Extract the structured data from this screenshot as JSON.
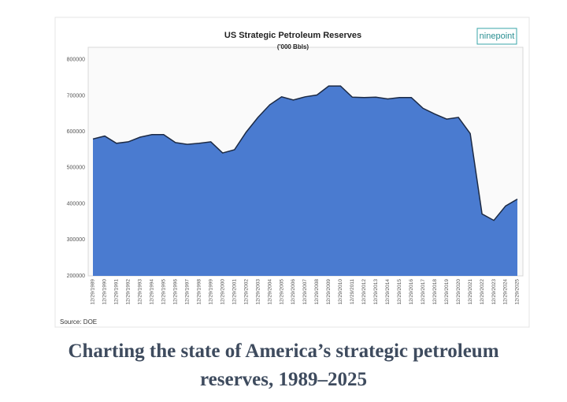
{
  "chart_data": {
    "type": "area",
    "title": "US Strategic Petroleum Reserves",
    "subtitle": "('000 Bbls)",
    "logo": "ninepoint",
    "source": "Source: DOE",
    "caption": "Charting the state of America’s strategic petroleum reserves, 1989–2025",
    "categories": [
      "12/29/1989",
      "12/29/1990",
      "12/29/1991",
      "12/29/1992",
      "12/29/1993",
      "12/29/1994",
      "12/29/1995",
      "12/29/1996",
      "12/29/1997",
      "12/29/1998",
      "12/29/1999",
      "12/29/2000",
      "12/29/2001",
      "12/29/2002",
      "12/29/2003",
      "12/29/2004",
      "12/29/2005",
      "12/29/2006",
      "12/29/2007",
      "12/29/2008",
      "12/29/2009",
      "12/29/2010",
      "12/29/2011",
      "12/29/2012",
      "12/29/2013",
      "12/29/2014",
      "12/29/2015",
      "12/29/2016",
      "12/29/2017",
      "12/29/2018",
      "12/29/2019",
      "12/29/2020",
      "12/29/2021",
      "12/29/2022",
      "12/29/2023",
      "12/29/2024",
      "12/29/2025"
    ],
    "values": [
      580000,
      588000,
      568000,
      572000,
      585000,
      592000,
      592000,
      570000,
      565000,
      568000,
      572000,
      541000,
      550000,
      599000,
      640000,
      675000,
      697000,
      688000,
      697000,
      702000,
      727000,
      727000,
      696000,
      695000,
      696000,
      691000,
      695000,
      695000,
      665000,
      649000,
      635000,
      640000,
      595000,
      372000,
      354000,
      394000,
      413000
    ],
    "color": "#4a7bd0",
    "ylim": [
      200000,
      830000
    ],
    "yticks": [
      200000,
      300000,
      400000,
      500000,
      600000,
      700000,
      800000
    ],
    "grid": false
  }
}
